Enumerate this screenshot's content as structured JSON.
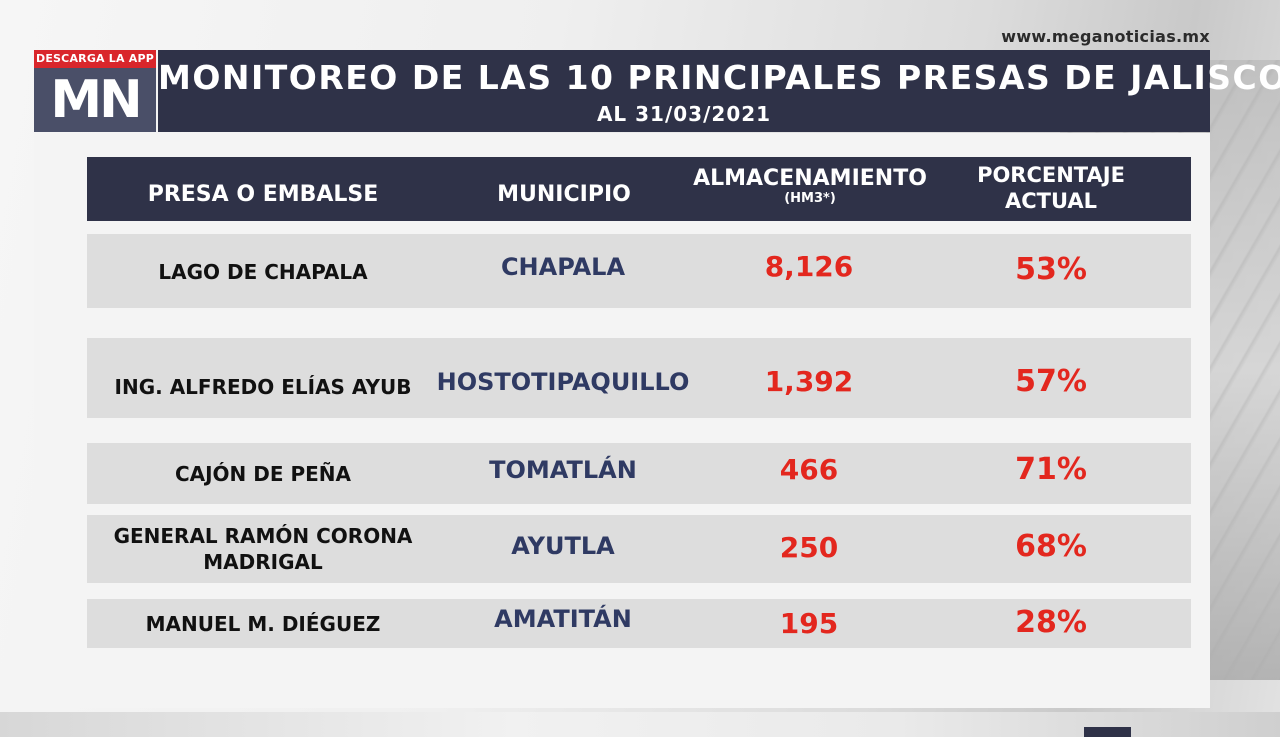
{
  "header": {
    "website": "www.meganoticias.mx",
    "app_badge": "DESCARGA LA APP",
    "logo": "MN",
    "title": "MONITOREO DE LAS 10 PRINCIPALES PRESAS DE JALISCO",
    "subtitle": "AL 31/03/2021"
  },
  "table": {
    "columns": {
      "presa": "PRESA O EMBALSE",
      "municipio": "MUNICIPIO",
      "almacenamiento": "ALMACENAMIENTO",
      "almacenamiento_unit": "(HM3*)",
      "porcentaje_line1": "PORCENTAJE",
      "porcentaje_line2": "ACTUAL"
    },
    "rows": [
      {
        "presa": "LAGO DE CHAPALA",
        "presa_line2": "",
        "municipio": "CHAPALA",
        "almacenamiento": "8,126",
        "porcentaje": "53%"
      },
      {
        "presa": "ING. ALFREDO ELÍAS AYUB",
        "presa_line2": "",
        "municipio": "HOSTOTIPAQUILLO",
        "almacenamiento": "1,392",
        "porcentaje": "57%"
      },
      {
        "presa": "CAJÓN DE PEÑA",
        "presa_line2": "",
        "municipio": "TOMATLÁN",
        "almacenamiento": "466",
        "porcentaje": "71%"
      },
      {
        "presa": "GENERAL RAMÓN CORONA",
        "presa_line2": "MADRIGAL",
        "municipio": "AYUTLA",
        "almacenamiento": "250",
        "porcentaje": "68%"
      },
      {
        "presa": "MANUEL M. DIÉGUEZ",
        "presa_line2": "",
        "municipio": "AMATITÁN",
        "almacenamiento": "195",
        "porcentaje": "28%"
      }
    ]
  },
  "colors": {
    "header_navy": "#2f3248",
    "logo_bg": "#4a4f68",
    "badge_red": "#d9262b",
    "value_red": "#e3271e",
    "municipio_blue": "#2f3a63",
    "row_bg": "#dddddd"
  }
}
